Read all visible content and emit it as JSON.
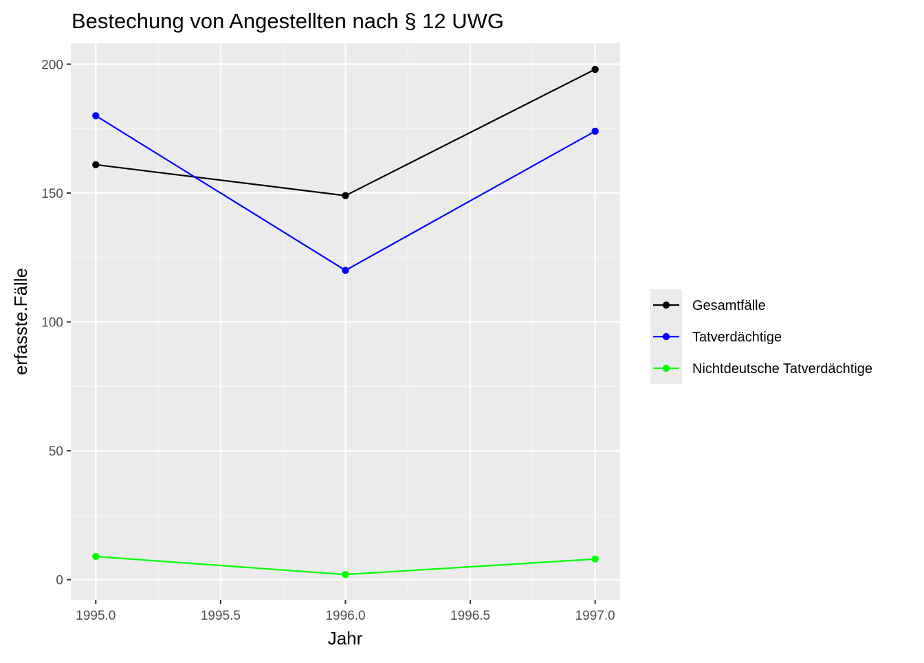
{
  "chart_data": {
    "type": "line",
    "title": "Bestechung von Angestellten nach § 12 UWG",
    "xlabel": "Jahr",
    "ylabel": "erfasste.Fälle",
    "xlim": [
      1994.9,
      1997.1
    ],
    "ylim": [
      -7.8,
      208.1
    ],
    "x_ticks": [
      1995.0,
      1995.5,
      1996.0,
      1996.5,
      1997.0
    ],
    "x_tick_labels": [
      "1995.0",
      "1995.5",
      "1996.0",
      "1996.5",
      "1997.0"
    ],
    "y_ticks": [
      0,
      50,
      100,
      150,
      200
    ],
    "y_tick_labels": [
      "0",
      "50",
      "100",
      "150",
      "200"
    ],
    "x_minor": [
      1995.25,
      1995.75,
      1996.25,
      1996.75
    ],
    "y_minor": [
      25,
      75,
      125,
      175
    ],
    "grid": true,
    "legend_position": "right",
    "x": [
      1995,
      1996,
      1997
    ],
    "series": [
      {
        "name": "Gesamtfälle",
        "color": "#000000",
        "values": [
          161,
          149,
          198
        ]
      },
      {
        "name": "Tatverdächtige",
        "color": "#0000FF",
        "values": [
          180,
          120,
          174
        ]
      },
      {
        "name": "Nichtdeutsche Tatverdächtige",
        "color": "#00FF00",
        "values": [
          9,
          2,
          8
        ]
      }
    ],
    "colors": {
      "panel_background": "#EBEBEB",
      "grid_major": "#FFFFFF",
      "grid_minor": "#F7F7F7",
      "tick_text": "#4D4D4D",
      "legend_key_background": "#EBEBEB"
    }
  }
}
